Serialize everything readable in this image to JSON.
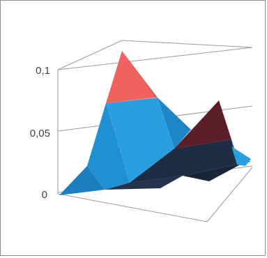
{
  "chart_data": {
    "type": "surface",
    "title": "",
    "xlabel": "",
    "ylabel": "",
    "zlim": [
      0,
      0.1
    ],
    "z_ticks": [
      {
        "value": 0,
        "label": "0"
      },
      {
        "value": 0.05,
        "label": "0,05"
      },
      {
        "value": 0.1,
        "label": "0,1"
      }
    ],
    "grid": true,
    "legend": "none",
    "colors": {
      "band_0_0.05_front": "#1f8fd0",
      "band_0_0.05_back": "#1f2d44",
      "band_0.05_0.1_front": "#f0625d",
      "band_0.05_0.1_back": "#5a1f2b",
      "gridline": "#9a9a9a",
      "tick_text": "#404040",
      "border": "#8c8c8c"
    },
    "series": [
      {
        "values": [
          0.0,
          0.03,
          0.1,
          0.06,
          0.02
        ]
      },
      {
        "values": [
          0.0,
          0.02,
          0.03,
          0.07,
          0.01
        ]
      }
    ]
  }
}
